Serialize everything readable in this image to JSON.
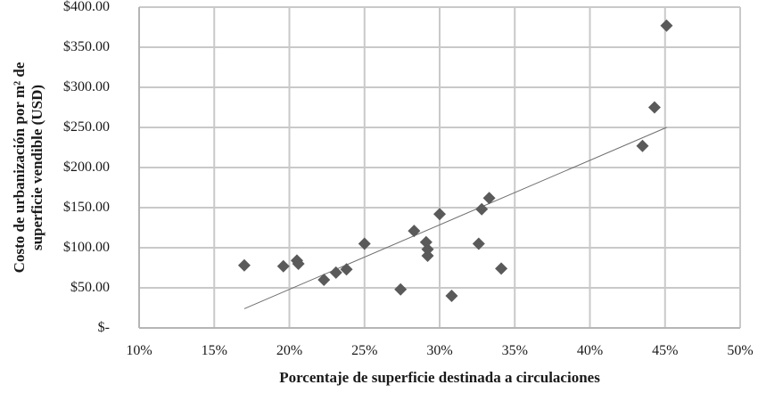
{
  "chart_data": {
    "type": "scatter",
    "title": "",
    "xlabel": "Porcentaje de superficie destinada a circulaciones",
    "ylabel": "Costo de urbanización por m² de superficie vendible (USD)",
    "ylabel_lines": [
      "Costo de urbanización por m² de",
      "superficie vendible (USD)"
    ],
    "xlim": [
      0.1,
      0.5
    ],
    "ylim": [
      0,
      400
    ],
    "x_ticks": [
      "10%",
      "15%",
      "20%",
      "25%",
      "30%",
      "35%",
      "40%",
      "45%",
      "50%"
    ],
    "x_tick_values": [
      0.1,
      0.15,
      0.2,
      0.25,
      0.3,
      0.35,
      0.4,
      0.45,
      0.5
    ],
    "y_ticks": [
      "$-",
      "$50.00",
      "$100.00",
      "$150.00",
      "$200.00",
      "$250.00",
      "$300.00",
      "$350.00",
      "$400.00"
    ],
    "y_tick_values": [
      0,
      50,
      100,
      150,
      200,
      250,
      300,
      350,
      400
    ],
    "grid": true,
    "legend": "none",
    "marker": "diamond",
    "series": [
      {
        "name": "Costo de urbanización",
        "points": [
          {
            "x": 0.17,
            "y": 78
          },
          {
            "x": 0.196,
            "y": 77
          },
          {
            "x": 0.205,
            "y": 84
          },
          {
            "x": 0.206,
            "y": 80
          },
          {
            "x": 0.223,
            "y": 60
          },
          {
            "x": 0.231,
            "y": 69
          },
          {
            "x": 0.238,
            "y": 73
          },
          {
            "x": 0.25,
            "y": 105
          },
          {
            "x": 0.274,
            "y": 48
          },
          {
            "x": 0.283,
            "y": 121
          },
          {
            "x": 0.291,
            "y": 107
          },
          {
            "x": 0.292,
            "y": 98
          },
          {
            "x": 0.292,
            "y": 90
          },
          {
            "x": 0.3,
            "y": 142
          },
          {
            "x": 0.308,
            "y": 40
          },
          {
            "x": 0.326,
            "y": 105
          },
          {
            "x": 0.328,
            "y": 148
          },
          {
            "x": 0.333,
            "y": 162
          },
          {
            "x": 0.341,
            "y": 74
          },
          {
            "x": 0.435,
            "y": 227
          },
          {
            "x": 0.443,
            "y": 275
          },
          {
            "x": 0.451,
            "y": 377
          }
        ]
      }
    ],
    "trendline": {
      "type": "linear",
      "x_start": 0.17,
      "y_start": 24,
      "x_end": 0.451,
      "y_end": 250
    }
  },
  "colors": {
    "marker": "#5a5a5a",
    "grid": "#c9c9c9",
    "axis": "#b5b5b5",
    "trendline": "#6e6e6e",
    "text": "#1a1a1a"
  }
}
